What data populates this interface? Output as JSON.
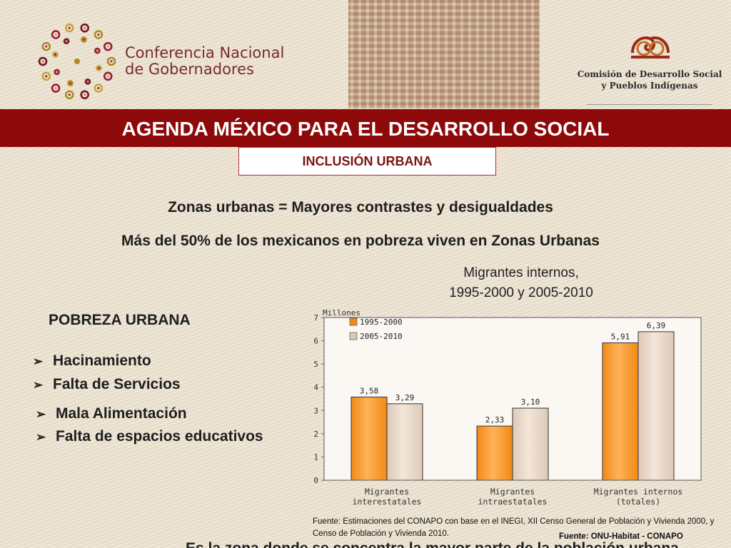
{
  "header": {
    "conference_name": [
      "Conferencia Nacional",
      "de Gobernadores"
    ],
    "commission_name": [
      "Comisión de Desarrollo Social",
      "y Pueblos Indígenas"
    ],
    "banner_title": "AGENDA MÉXICO PARA EL DESARROLLO SOCIAL",
    "subtitle": "INCLUSIÓN URBANA"
  },
  "main": {
    "headline_1": "Zonas urbanas = Mayores contrastes y desigualdades",
    "headline_2": "Más del 50% de los mexicanos en pobreza viven en Zonas Urbanas",
    "poverty_title": "POBREZA URBANA",
    "poverty_items": [
      "Hacinamiento",
      "Falta de Servicios",
      "Mala Alimentación",
      "Falta de espacios educativos"
    ]
  },
  "chart_data": {
    "type": "bar",
    "title": [
      "Migrantes internos,",
      "1995-2000 y 2005-2010"
    ],
    "ylabel": "Millones",
    "categories": [
      [
        "Migrantes",
        "interestatales"
      ],
      [
        "Migrantes",
        "intraestatales"
      ],
      [
        "Migrantes internos",
        "(totales)"
      ]
    ],
    "series": [
      {
        "name": "1995-2000",
        "values": [
          3.58,
          2.33,
          5.91
        ],
        "labels": [
          "3,58",
          "2,33",
          "5,91"
        ],
        "color": "#f08a14"
      },
      {
        "name": "2005-2010",
        "values": [
          3.29,
          3.1,
          6.39
        ],
        "labels": [
          "3,29",
          "3,10",
          "6,39"
        ],
        "color": "#ddc9b7"
      }
    ],
    "ylim": [
      0,
      7
    ],
    "yticks": [
      "0",
      "1",
      "2",
      "3",
      "4",
      "5",
      "6",
      "7"
    ],
    "legend": "top-left",
    "grid": false
  },
  "footer": {
    "source": "Fuente: Estimaciones del CONAPO con base en el INEGI, XII Censo General de Población y Vivienda 2000, y Censo de Población y Vivienda 2010.",
    "onu_source": "Fuente: ONU-Habitat - CONAPO",
    "cut_text": "Es la zona donde se concentra la mayor parte de la población urbana del país"
  },
  "icons": {
    "bullet": "arrow-bullet-icon",
    "left_logo": "conference-flower-logo",
    "right_logo": "commission-logo"
  }
}
